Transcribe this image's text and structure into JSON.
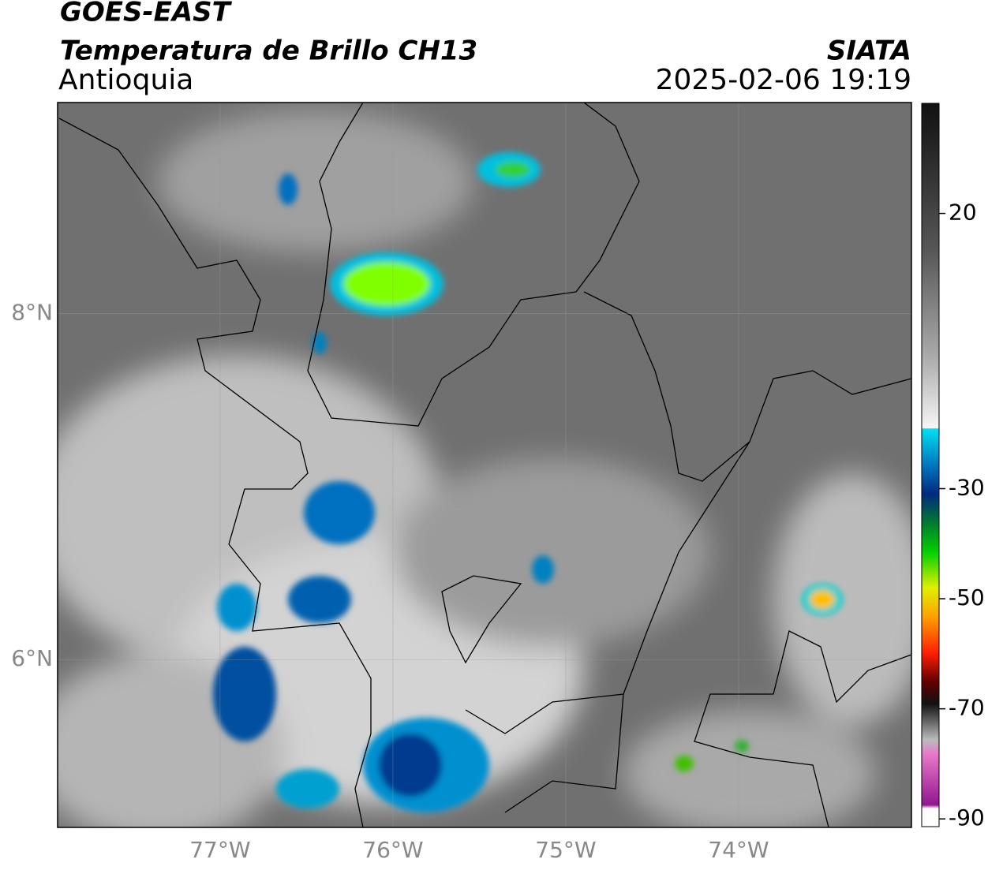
{
  "header": {
    "satellite": "GOES-EAST",
    "product": "Temperatura de Brillo CH13",
    "region": "Antioquia",
    "source": "SIATA",
    "datetime": "2025-02-06 19:19"
  },
  "map": {
    "lon_range": [
      -77.94,
      -73
    ],
    "lat_range": [
      5.03,
      9.22
    ],
    "lon_ticks": [
      {
        "value": -77,
        "label": "77°W"
      },
      {
        "value": -76,
        "label": "76°W"
      },
      {
        "value": -75,
        "label": "75°W"
      },
      {
        "value": -74,
        "label": "74°W"
      }
    ],
    "lat_ticks": [
      {
        "value": 8,
        "label": "8°N"
      },
      {
        "value": 6,
        "label": "6°N"
      }
    ],
    "grid": true
  },
  "colorbar": {
    "range": [
      -91.4,
      40
    ],
    "ticks": [
      20,
      -30,
      -50,
      -70,
      -90
    ]
  }
}
